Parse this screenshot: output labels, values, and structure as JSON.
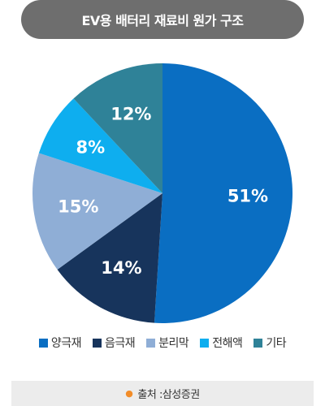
{
  "chart_data": {
    "type": "pie",
    "title": "EV용 배터리 재료비 원가 구조",
    "categories": [
      "양극재",
      "음극재",
      "분리막",
      "전해액",
      "기타"
    ],
    "values": [
      51,
      14,
      15,
      8,
      12
    ],
    "labels": [
      "51%",
      "14%",
      "15%",
      "8%",
      "12%"
    ],
    "colors": [
      "#0a6ec2",
      "#17345c",
      "#8faed6",
      "#0eaeef",
      "#2f8298"
    ],
    "legend_position": "bottom"
  },
  "source": {
    "text": "출처 :삼성증권"
  }
}
